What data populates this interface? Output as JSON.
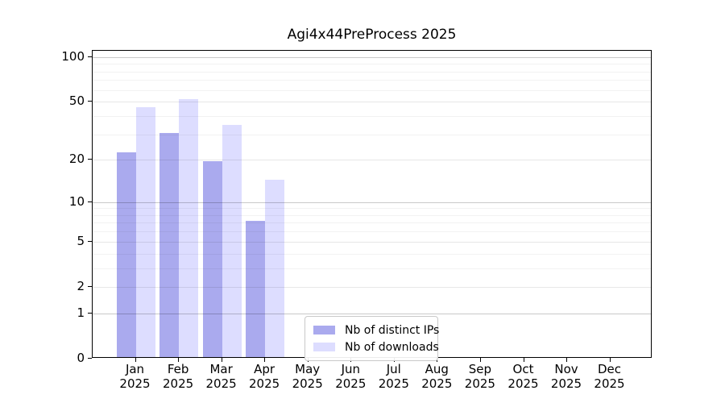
{
  "chart_data": {
    "type": "bar",
    "title": "Agi4x44PreProcess 2025",
    "categories": [
      "Jan 2025",
      "Feb 2025",
      "Mar 2025",
      "Apr 2025",
      "May 2025",
      "Jun 2025",
      "Jul 2025",
      "Aug 2025",
      "Sep 2025",
      "Oct 2025",
      "Nov 2025",
      "Dec 2025"
    ],
    "series": [
      {
        "name": "Nb of distinct IPs",
        "color": "#aaaaee",
        "values": [
          22,
          30,
          19,
          7,
          0,
          0,
          0,
          0,
          0,
          0,
          0,
          0
        ]
      },
      {
        "name": "Nb of downloads",
        "color": "#ddddff",
        "values": [
          45,
          51,
          34,
          14,
          0,
          0,
          0,
          0,
          0,
          0,
          0,
          0
        ]
      }
    ],
    "xlabel": "",
    "ylabel": "",
    "yscale": "log1p",
    "ylim": [
      0,
      110
    ],
    "yticks": [
      0,
      1,
      2,
      5,
      10,
      20,
      50,
      100
    ],
    "major_yticks": [
      1,
      10,
      100
    ],
    "minor_yticks": [
      3,
      4,
      6,
      7,
      8,
      9,
      30,
      40,
      60,
      70,
      80,
      90
    ],
    "grid": true,
    "legend_position": "lower center inside",
    "bar_edge": "none",
    "background_color": "#ffffff"
  }
}
